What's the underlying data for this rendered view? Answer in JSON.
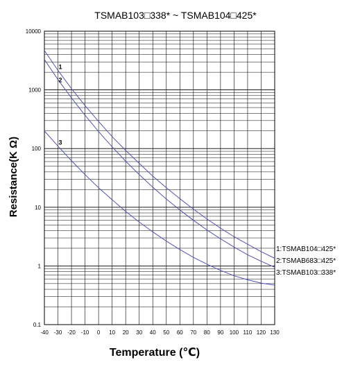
{
  "chart_data": {
    "type": "line",
    "title": "TSMAB103□338* ~ TSMAB104□425*",
    "xlabel": "Temperature (℃)",
    "ylabel": "Resistance(K Ω)",
    "y_scale": "log",
    "xlim": [
      -40,
      130
    ],
    "ylim": [
      0.1,
      10000
    ],
    "x_ticks": [
      "-40",
      "-30",
      "-20",
      "-10",
      "0",
      "10",
      "20",
      "30",
      "40",
      "50",
      "60",
      "70",
      "80",
      "90",
      "100",
      "110",
      "120",
      "130"
    ],
    "y_ticks": [
      "0.1",
      "1",
      "10",
      "100",
      "1000",
      "10000"
    ],
    "grid": true,
    "line_color": "#5050c8",
    "series": [
      {
        "name": "1:TSMAB104□425*",
        "marker": "1",
        "x": [
          -40,
          -30,
          -20,
          -10,
          0,
          10,
          20,
          30,
          40,
          50,
          60,
          70,
          80,
          90,
          100,
          110,
          120,
          130
        ],
        "y": [
          4700,
          2150,
          1050,
          540,
          290,
          160,
          93,
          56,
          34,
          21.5,
          14,
          9.3,
          6.3,
          4.4,
          3.15,
          2.35,
          1.75,
          1.35
        ]
      },
      {
        "name": "2:TSMAB683□425*",
        "marker": "2",
        "x": [
          -40,
          -30,
          -20,
          -10,
          0,
          10,
          20,
          30,
          40,
          50,
          60,
          70,
          80,
          90,
          100,
          110,
          120,
          130
        ],
        "y": [
          3300,
          1500,
          730,
          370,
          195,
          107,
          61,
          36,
          22,
          13.8,
          9.0,
          6.0,
          4.1,
          2.9,
          2.1,
          1.55,
          1.2,
          0.95
        ]
      },
      {
        "name": "3:TSMAB103□338*",
        "marker": "3",
        "x": [
          -40,
          -30,
          -20,
          -10,
          0,
          10,
          20,
          30,
          40,
          50,
          60,
          70,
          80,
          90,
          100,
          110,
          120,
          130
        ],
        "y": [
          200,
          110,
          62,
          36,
          21.5,
          13.4,
          8.5,
          5.6,
          3.8,
          2.65,
          1.9,
          1.4,
          1.07,
          0.84,
          0.68,
          0.58,
          0.51,
          0.47
        ]
      }
    ]
  }
}
